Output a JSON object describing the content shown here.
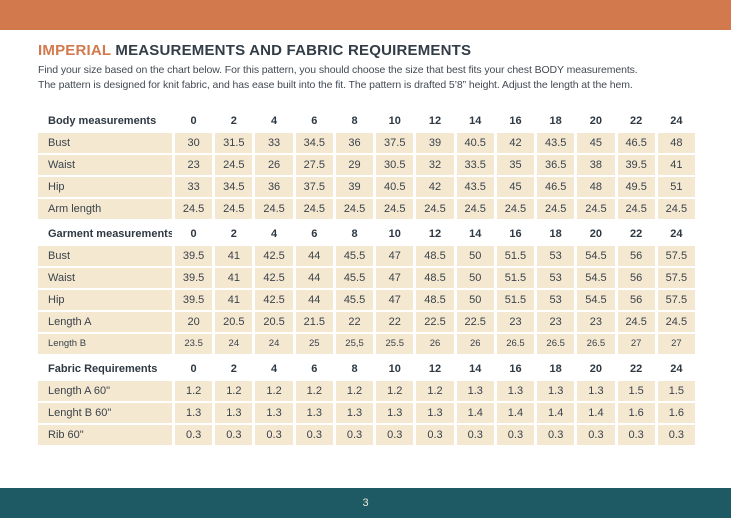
{
  "header": {
    "title_highlight": "IMPERIAL",
    "title_rest": "MEASUREMENTS AND FABRIC REQUIREMENTS",
    "description_line1": "Find your size based on the chart below. For this pattern, you should choose the size that best fits your chest BODY measurements.",
    "description_line2": "The pattern is designed for knit fabric, and has ease built into the fit. The pattern is drafted 5’8” height. Adjust the length at the hem."
  },
  "colors": {
    "accent_orange": "#d2794e",
    "row_beige": "#f5e8d1",
    "footer_teal": "#1d5a63",
    "text_dark": "#333d47"
  },
  "table": {
    "sizes": [
      "0",
      "2",
      "4",
      "6",
      "8",
      "10",
      "12",
      "14",
      "16",
      "18",
      "20",
      "22",
      "24"
    ],
    "sections": [
      {
        "header": "Body measurements",
        "rows": [
          {
            "label": "Bust",
            "values": [
              "30",
              "31.5",
              "33",
              "34.5",
              "36",
              "37.5",
              "39",
              "40.5",
              "42",
              "43.5",
              "45",
              "46.5",
              "48"
            ]
          },
          {
            "label": "Waist",
            "values": [
              "23",
              "24.5",
              "26",
              "27.5",
              "29",
              "30.5",
              "32",
              "33.5",
              "35",
              "36.5",
              "38",
              "39.5",
              "41"
            ]
          },
          {
            "label": "Hip",
            "values": [
              "33",
              "34.5",
              "36",
              "37.5",
              "39",
              "40.5",
              "42",
              "43.5",
              "45",
              "46.5",
              "48",
              "49.5",
              "51"
            ]
          },
          {
            "label": "Arm length",
            "values": [
              "24.5",
              "24.5",
              "24.5",
              "24.5",
              "24.5",
              "24.5",
              "24.5",
              "24.5",
              "24.5",
              "24.5",
              "24.5",
              "24.5",
              "24.5"
            ]
          }
        ]
      },
      {
        "header": "Garment measurements",
        "rows": [
          {
            "label": "Bust",
            "values": [
              "39.5",
              "41",
              "42.5",
              "44",
              "45.5",
              "47",
              "48.5",
              "50",
              "51.5",
              "53",
              "54.5",
              "56",
              "57.5"
            ]
          },
          {
            "label": "Waist",
            "values": [
              "39.5",
              "41",
              "42.5",
              "44",
              "45.5",
              "47",
              "48.5",
              "50",
              "51.5",
              "53",
              "54.5",
              "56",
              "57.5"
            ]
          },
          {
            "label": "Hip",
            "values": [
              "39.5",
              "41",
              "42.5",
              "44",
              "45.5",
              "47",
              "48.5",
              "50",
              "51.5",
              "53",
              "54.5",
              "56",
              "57.5"
            ]
          },
          {
            "label": "Length A",
            "values": [
              "20",
              "20.5",
              "20.5",
              "21.5",
              "22",
              "22",
              "22.5",
              "22.5",
              "23",
              "23",
              "23",
              "24.5",
              "24.5"
            ]
          },
          {
            "label": "Length B",
            "values": [
              "23.5",
              "24",
              "24",
              "25",
              "25,5",
              "25.5",
              "26",
              "26",
              "26.5",
              "26.5",
              "26.5",
              "27",
              "27"
            ],
            "small": true
          }
        ]
      },
      {
        "header": "Fabric Requirements",
        "rows": [
          {
            "label": "Length A 60\"",
            "values": [
              "1.2",
              "1.2",
              "1.2",
              "1.2",
              "1.2",
              "1.2",
              "1.2",
              "1.3",
              "1.3",
              "1.3",
              "1.3",
              "1.5",
              "1.5"
            ]
          },
          {
            "label": "Lenght B 60\"",
            "values": [
              "1.3",
              "1.3",
              "1.3",
              "1.3",
              "1.3",
              "1.3",
              "1.3",
              "1.4",
              "1.4",
              "1.4",
              "1.4",
              "1.6",
              "1.6"
            ]
          },
          {
            "label": "Rib 60\"",
            "values": [
              "0.3",
              "0.3",
              "0.3",
              "0.3",
              "0.3",
              "0.3",
              "0.3",
              "0.3",
              "0.3",
              "0.3",
              "0.3",
              "0.3",
              "0.3"
            ]
          }
        ]
      }
    ]
  },
  "footer": {
    "page_number": "3"
  }
}
